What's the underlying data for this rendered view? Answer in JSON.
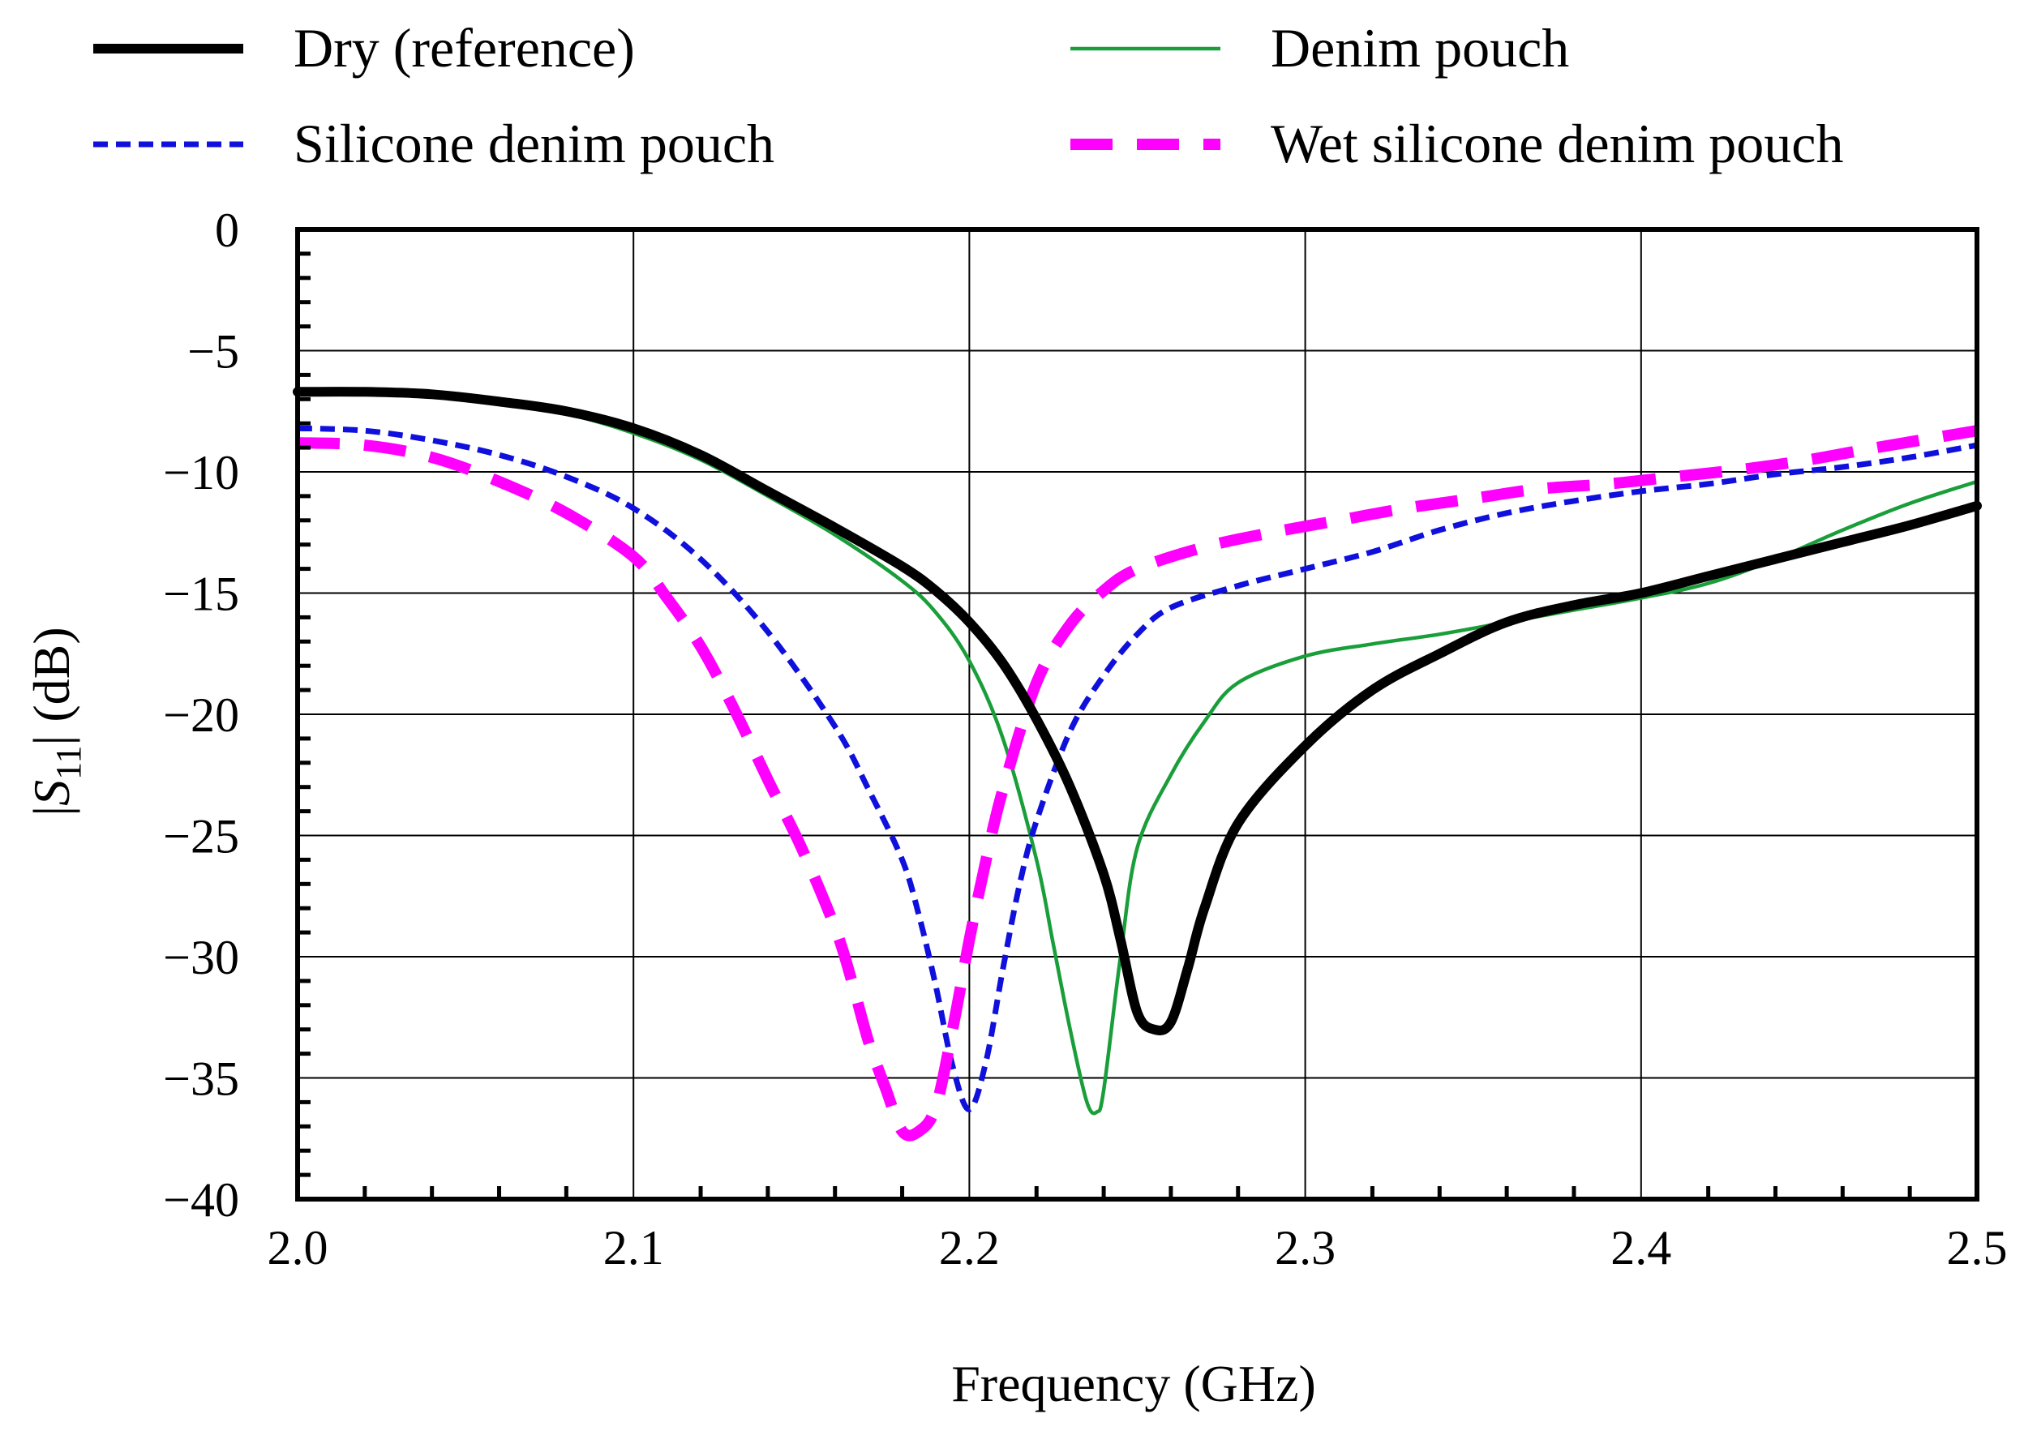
{
  "chart_data": {
    "type": "line",
    "xlabel": "Frequency (GHz)",
    "ylabel": {
      "prefix": "|",
      "var": "S",
      "sub": "11",
      "suffix": "| (dB)"
    },
    "xlim": [
      2.0,
      2.5
    ],
    "ylim": [
      -40,
      0
    ],
    "xticks": [
      2.0,
      2.1,
      2.2,
      2.3,
      2.4,
      2.5
    ],
    "xtick_labels": [
      "2.0",
      "2.1",
      "2.2",
      "2.3",
      "2.4",
      "2.5"
    ],
    "yticks": [
      0,
      -5,
      -10,
      -15,
      -20,
      -25,
      -30,
      -35,
      -40
    ],
    "ytick_labels": [
      "0",
      "−5",
      "−10",
      "−15",
      "−20",
      "−25",
      "−30",
      "−35",
      "−40"
    ],
    "x_minor_step": 0.02,
    "y_minor_step": 1,
    "grid": true,
    "legend_position": "top",
    "series": [
      {
        "name": "Dry (reference)",
        "color": "#000000",
        "style": "solid-thick",
        "x": [
          2.0,
          2.02,
          2.04,
          2.06,
          2.08,
          2.1,
          2.12,
          2.14,
          2.16,
          2.18,
          2.19,
          2.2,
          2.21,
          2.22,
          2.23,
          2.24,
          2.245,
          2.25,
          2.255,
          2.26,
          2.265,
          2.27,
          2.28,
          2.3,
          2.32,
          2.34,
          2.36,
          2.38,
          2.4,
          2.42,
          2.44,
          2.46,
          2.48,
          2.5
        ],
        "y": [
          -6.7,
          -6.7,
          -6.8,
          -7.1,
          -7.5,
          -8.2,
          -9.3,
          -10.8,
          -12.3,
          -13.9,
          -14.9,
          -16.2,
          -17.9,
          -20.2,
          -23.0,
          -26.6,
          -29.3,
          -32.3,
          -33.0,
          -32.7,
          -30.5,
          -28.0,
          -24.5,
          -21.3,
          -19.0,
          -17.5,
          -16.2,
          -15.5,
          -15.0,
          -14.3,
          -13.6,
          -12.9,
          -12.2,
          -11.4
        ]
      },
      {
        "name": "Denim pouch",
        "color": "#1a9e3a",
        "style": "solid-thin",
        "x": [
          2.0,
          2.02,
          2.04,
          2.06,
          2.08,
          2.1,
          2.12,
          2.14,
          2.16,
          2.18,
          2.19,
          2.2,
          2.21,
          2.22,
          2.225,
          2.23,
          2.235,
          2.238,
          2.24,
          2.245,
          2.25,
          2.26,
          2.27,
          2.28,
          2.3,
          2.32,
          2.34,
          2.36,
          2.38,
          2.4,
          2.42,
          2.44,
          2.46,
          2.48,
          2.5
        ],
        "y": [
          -6.8,
          -6.7,
          -6.8,
          -7.1,
          -7.6,
          -8.4,
          -9.5,
          -11.0,
          -12.6,
          -14.5,
          -15.8,
          -17.8,
          -21.0,
          -26.0,
          -29.5,
          -33.0,
          -36.0,
          -36.4,
          -35.5,
          -30.0,
          -25.5,
          -22.5,
          -20.3,
          -18.7,
          -17.6,
          -17.1,
          -16.7,
          -16.2,
          -15.7,
          -15.2,
          -14.6,
          -13.6,
          -12.4,
          -11.3,
          -10.4
        ]
      },
      {
        "name": "Silicone denim pouch",
        "color": "#1010dd",
        "style": "dotted",
        "x": [
          2.0,
          2.02,
          2.04,
          2.06,
          2.08,
          2.1,
          2.12,
          2.14,
          2.16,
          2.17,
          2.18,
          2.185,
          2.19,
          2.195,
          2.2,
          2.205,
          2.21,
          2.215,
          2.22,
          2.23,
          2.24,
          2.25,
          2.26,
          2.28,
          2.3,
          2.32,
          2.34,
          2.36,
          2.38,
          2.4,
          2.42,
          2.44,
          2.46,
          2.48,
          2.5
        ],
        "y": [
          -8.2,
          -8.3,
          -8.7,
          -9.3,
          -10.2,
          -11.5,
          -13.6,
          -16.6,
          -20.5,
          -23.1,
          -26.0,
          -28.3,
          -31.2,
          -34.5,
          -36.3,
          -34.3,
          -30.5,
          -27.0,
          -24.4,
          -20.7,
          -18.4,
          -16.7,
          -15.6,
          -14.7,
          -14.0,
          -13.3,
          -12.4,
          -11.7,
          -11.2,
          -10.8,
          -10.5,
          -10.1,
          -9.8,
          -9.4,
          -8.9
        ]
      },
      {
        "name": "Wet silicone denim pouch",
        "color": "#ff00ff",
        "style": "dashed",
        "x": [
          2.0,
          2.02,
          2.04,
          2.06,
          2.08,
          2.1,
          2.11,
          2.12,
          2.13,
          2.14,
          2.15,
          2.16,
          2.165,
          2.17,
          2.175,
          2.18,
          2.185,
          2.19,
          2.195,
          2.2,
          2.205,
          2.21,
          2.22,
          2.23,
          2.24,
          2.25,
          2.27,
          2.29,
          2.31,
          2.33,
          2.35,
          2.37,
          2.39,
          2.41,
          2.43,
          2.45,
          2.47,
          2.5
        ],
        "y": [
          -8.8,
          -8.9,
          -9.4,
          -10.4,
          -11.7,
          -13.5,
          -15.2,
          -17.2,
          -19.8,
          -22.7,
          -25.5,
          -28.8,
          -31.0,
          -33.5,
          -35.4,
          -37.2,
          -37.2,
          -36.2,
          -33.0,
          -29.3,
          -26.0,
          -23.1,
          -18.7,
          -16.3,
          -14.9,
          -14.0,
          -13.1,
          -12.5,
          -12.0,
          -11.5,
          -11.1,
          -10.7,
          -10.5,
          -10.2,
          -9.9,
          -9.5,
          -9.0,
          -8.3
        ]
      }
    ]
  }
}
